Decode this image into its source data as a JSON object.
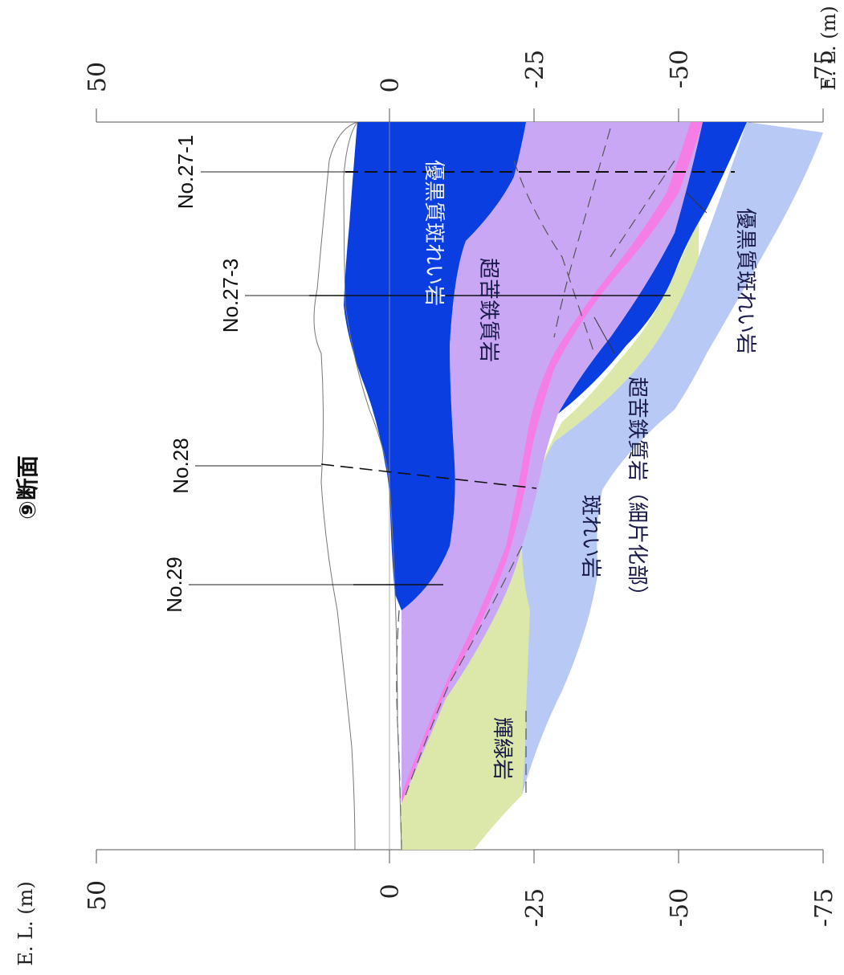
{
  "section": {
    "title": "⑨断面",
    "elevation_axis_label": "E. L. (m)",
    "elevation_ticks": [
      "50",
      "0",
      "-25",
      "-50",
      "-75"
    ]
  },
  "boreholes": [
    {
      "id": "No.27-1"
    },
    {
      "id": "No.27-3"
    },
    {
      "id": "No.28"
    },
    {
      "id": "No.29"
    }
  ],
  "units": [
    {
      "key": "melanocratic_upper",
      "label": "優黒質斑れい岩",
      "color": "#0a3ee0"
    },
    {
      "key": "ultramafic_upper",
      "label": "超苦鉄質岩",
      "color": "#c9a7f5"
    },
    {
      "key": "ultramafic_band",
      "label": "",
      "color": "#f57de6"
    },
    {
      "key": "diorite",
      "label": "輝緑岩",
      "color": "#dbe8a9"
    },
    {
      "key": "gabbro",
      "label": "斑れい岩",
      "color": "#b8c9f5"
    },
    {
      "key": "ultramafic_sheared",
      "label": "超苦鉄質岩（細片化部）",
      "color": "#dbe8a9"
    },
    {
      "key": "melanocratic_lower",
      "label": "優黒質斑れい岩",
      "color": "#0a3ee0"
    }
  ]
}
